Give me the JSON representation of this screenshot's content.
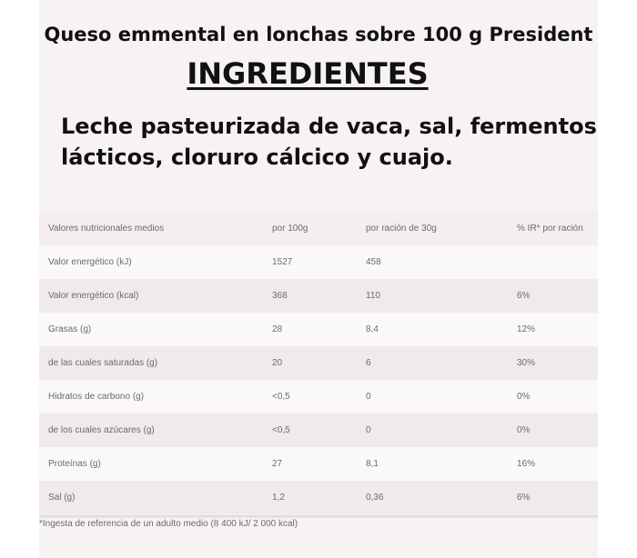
{
  "title": "Queso emmental en lonchas sobre 100 g President",
  "heading": "INGREDIENTES",
  "ingredients": {
    "line1": "Leche pasteurizada de vaca, sal, fermentos",
    "line2": "lácticos, cloruro cálcico y cuajo."
  },
  "table": {
    "headers": [
      "Valores nutricionales medios",
      "por 100g",
      "por ración de 30g",
      "% IR* por ración"
    ],
    "rows": [
      [
        "Valor energético (kJ)",
        "1527",
        "458",
        ""
      ],
      [
        "Valor energético (kcal)",
        "368",
        "110",
        "6%"
      ],
      [
        "Grasas (g)",
        "28",
        "8,4",
        "12%"
      ],
      [
        "de las cuales saturadas (g)",
        "20",
        "6",
        "30%"
      ],
      [
        "Hidratos de carbono (g)",
        "<0,5",
        "0",
        "0%"
      ],
      [
        "de los cuales azúcares (g)",
        "<0,5",
        "0",
        "0%"
      ],
      [
        "Proteínas (g)",
        "27",
        "8,1",
        "16%"
      ],
      [
        "Sal (g)",
        "1,2",
        "0,36",
        "6%"
      ]
    ]
  },
  "footnote": "*Ingesta de referencia de un adulto medio (8 400 kJ/ 2 000 kcal)"
}
